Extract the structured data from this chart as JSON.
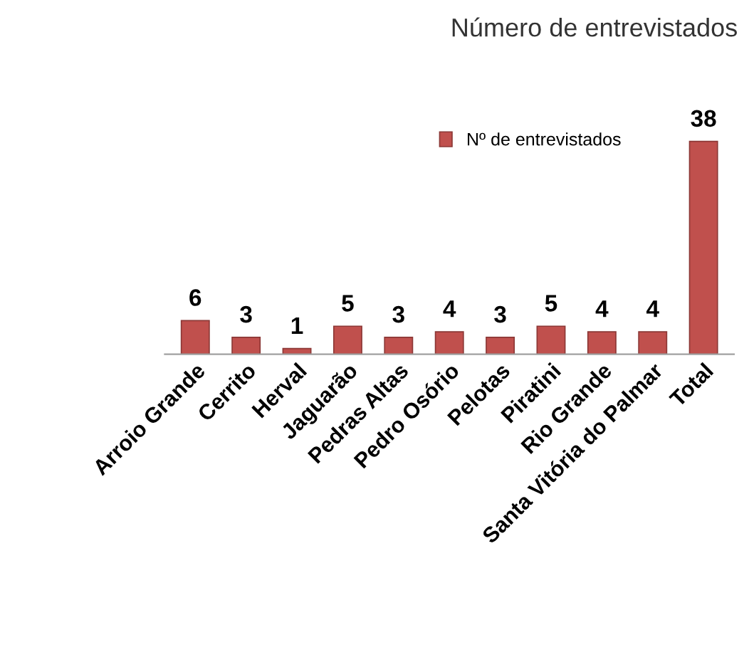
{
  "chart_data": {
    "type": "bar",
    "title": "Número de entrevistados",
    "categories": [
      "Arroio Grande",
      "Cerrito",
      "Herval",
      "Jaguarão",
      "Pedras Altas",
      "Pedro Osório",
      "Pelotas",
      "Piratini",
      "Rio Grande",
      "Santa Vitória do Palmar",
      "Total"
    ],
    "series": [
      {
        "name": "Nº de entrevistados",
        "color": "#c0504d",
        "values": [
          6,
          3,
          1,
          5,
          3,
          4,
          3,
          5,
          4,
          4,
          38
        ]
      }
    ],
    "data_labels": true,
    "legend": "top right",
    "grid": false
  }
}
